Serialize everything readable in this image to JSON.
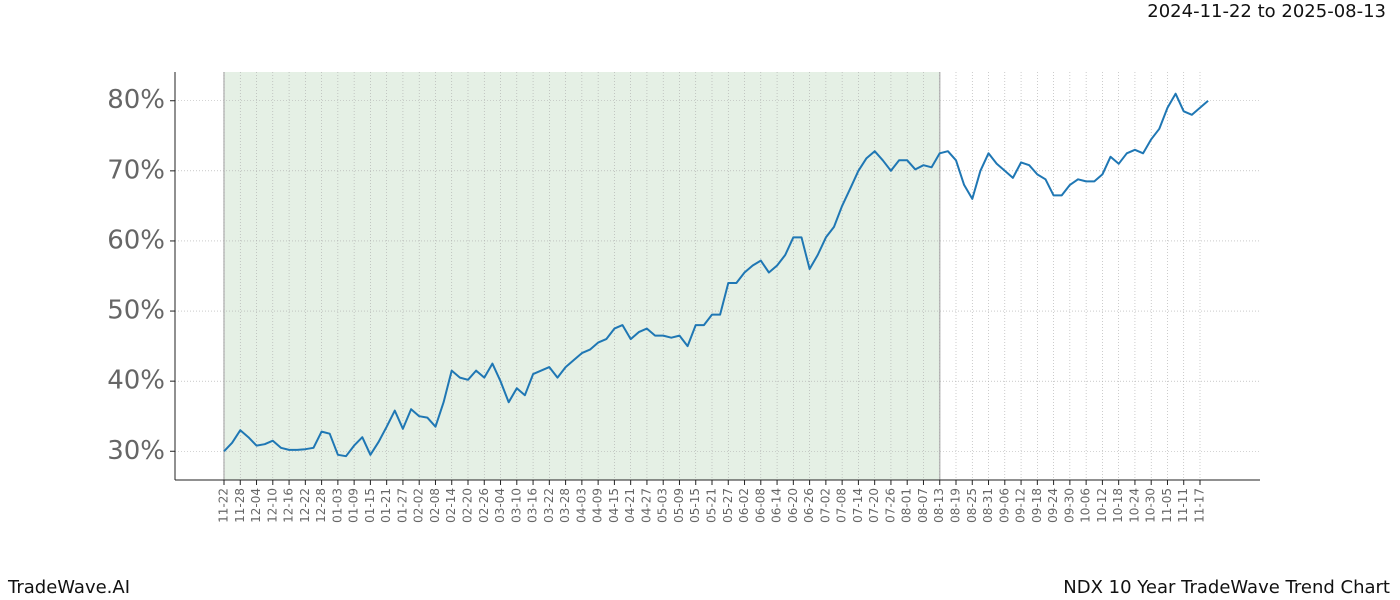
{
  "chart_data": {
    "type": "line",
    "title": "NDX 10 Year TradeWave Trend Chart",
    "subtitle": "2024-11-22 to 2025-08-13",
    "source": "TradeWave.AI",
    "categories": [
      "11-22",
      null,
      "11-28",
      null,
      "12-04",
      null,
      "12-10",
      null,
      "12-16",
      null,
      "12-22",
      null,
      "12-28",
      null,
      "01-03",
      null,
      "01-09",
      null,
      "01-15",
      null,
      "01-21",
      null,
      "01-27",
      null,
      "02-02",
      null,
      "02-08",
      null,
      "02-14",
      null,
      "02-20",
      null,
      "02-26",
      null,
      "03-04",
      null,
      "03-10",
      null,
      "03-16",
      null,
      "03-22",
      null,
      "03-28",
      null,
      "04-03",
      null,
      "04-09",
      null,
      "04-15",
      null,
      "04-21",
      null,
      "04-27",
      null,
      "05-03",
      null,
      "05-09",
      null,
      "05-15",
      null,
      "05-21",
      null,
      "05-27",
      null,
      "06-02",
      null,
      "06-08",
      null,
      "06-14",
      null,
      "06-20",
      null,
      "06-26",
      null,
      "07-02",
      null,
      "07-08",
      null,
      "07-14",
      null,
      "07-20",
      null,
      "07-26",
      null,
      "08-01",
      null,
      "08-07",
      null,
      "08-13",
      null,
      "08-19",
      null,
      "08-25",
      null,
      "08-31",
      null,
      "09-06",
      null,
      "09-12",
      null,
      "09-18",
      null,
      "09-24",
      null,
      "09-30",
      null,
      "10-06",
      null,
      "10-12",
      null,
      "10-18",
      null,
      "10-24",
      null,
      "10-30",
      null,
      "11-05",
      null,
      "11-11",
      null,
      "11-17",
      null
    ],
    "series": [
      {
        "color": "#1f77b4",
        "values": [
          30.0,
          31.2,
          33,
          32,
          30.8,
          31,
          31.5,
          30.5,
          30.2,
          30.2,
          30.3,
          30.5,
          32.8,
          32.5,
          29.5,
          29.3,
          30.8,
          32,
          29.5,
          31.3,
          33.5,
          35.8,
          33.2,
          36,
          35,
          34.8,
          33.5,
          37,
          41.5,
          40.5,
          40.2,
          41.5,
          40.5,
          42.5,
          40,
          37,
          39,
          38,
          41,
          41.5,
          42,
          40.5,
          42,
          43,
          44,
          44.5,
          45.5,
          46,
          47.5,
          48,
          46,
          47,
          47.5,
          46.5,
          46.5,
          46.2,
          46.5,
          45,
          48,
          48,
          49.5,
          49.5,
          54,
          54,
          55.5,
          56.5,
          57.2,
          55.5,
          56.5,
          58,
          60.5,
          60.5,
          56,
          58,
          60.5,
          62,
          65,
          67.5,
          70,
          71.8,
          72.8,
          71.5,
          70,
          71.5,
          71.5,
          70.2,
          70.8,
          70.5,
          72.5,
          72.8,
          71.5,
          68,
          66,
          70,
          72.5,
          71,
          70,
          69,
          71.2,
          70.8,
          69.5,
          68.8,
          66.5,
          66.5,
          68,
          68.8,
          68.5,
          68.5,
          69.5,
          72,
          71,
          72.5,
          73,
          72.5,
          74.5,
          76,
          79,
          81,
          78.5,
          78,
          79,
          80
        ]
      }
    ],
    "highlight_start": "11-22",
    "highlight_end": "08-13",
    "highlight_color": "#e5f0e5",
    "ylim": [
      25.9,
      84.1
    ],
    "yticks": [
      {
        "value": 30,
        "label": "30%"
      },
      {
        "value": 40,
        "label": "40%"
      },
      {
        "value": 50,
        "label": "50%"
      },
      {
        "value": 60,
        "label": "60%"
      },
      {
        "value": 70,
        "label": "70%"
      },
      {
        "value": 80,
        "label": "80%"
      }
    ],
    "grid": true
  }
}
